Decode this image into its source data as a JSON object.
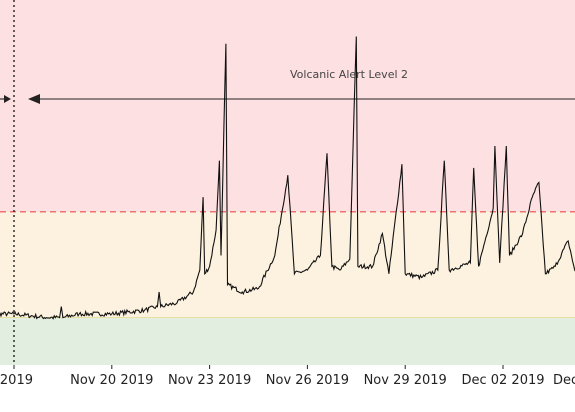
{
  "chart_data": {
    "type": "line",
    "annotation": "Volcanic Alert Level 2",
    "x_tick_labels": [
      "2019",
      "Nov 20 2019",
      "Nov 23 2019",
      "Nov 26 2019",
      "Nov 29 2019",
      "Dec 02 2019",
      "Dec"
    ],
    "x_ticks": [
      "2019-11-17",
      "2019-11-20",
      "2019-11-23",
      "2019-11-26",
      "2019-11-29",
      "2019-12-02",
      "2019-12-05"
    ],
    "xlim": [
      "2019-11-16",
      "2019-12-05"
    ],
    "alert_change_date": "2019-11-17",
    "threshold_line_y": 0.42,
    "bands": [
      {
        "level": "high",
        "from": 0.42,
        "to": 1.0,
        "color": "#fde0e2"
      },
      {
        "level": "moderate",
        "from": 0.13,
        "to": 0.42,
        "color": "#fdf2df"
      },
      {
        "level": "low",
        "from": 0.0,
        "to": 0.13,
        "color": "#e2efe0"
      }
    ],
    "series_color": "#111111",
    "threshold_color": "#f07070",
    "ylim": [
      0,
      1
    ],
    "grid": false,
    "series": [
      {
        "points": [
          [
            "2019-11-16",
            0.14
          ],
          [
            "2019-11-17",
            0.14
          ],
          [
            "2019-11-18",
            0.13
          ],
          [
            "2019-11-18.4",
            0.13
          ],
          [
            "2019-11-18.45",
            0.16
          ],
          [
            "2019-11-18.5",
            0.13
          ],
          [
            "2019-11-19",
            0.14
          ],
          [
            "2019-11-20",
            0.14
          ],
          [
            "2019-11-21",
            0.15
          ],
          [
            "2019-11-21.4",
            0.16
          ],
          [
            "2019-11-21.45",
            0.2
          ],
          [
            "2019-11-21.5",
            0.16
          ],
          [
            "2019-11-22",
            0.17
          ],
          [
            "2019-11-22.5",
            0.2
          ],
          [
            "2019-11-22.7",
            0.26
          ],
          [
            "2019-11-22.8",
            0.46
          ],
          [
            "2019-11-22.85",
            0.25
          ],
          [
            "2019-11-23",
            0.27
          ],
          [
            "2019-11-23.2",
            0.37
          ],
          [
            "2019-11-23.3",
            0.56
          ],
          [
            "2019-11-23.35",
            0.3
          ],
          [
            "2019-11-23.5",
            0.88
          ],
          [
            "2019-11-23.55",
            0.22
          ],
          [
            "2019-11-24",
            0.2
          ],
          [
            "2019-11-24.5",
            0.21
          ],
          [
            "2019-11-25",
            0.3
          ],
          [
            "2019-11-25.4",
            0.52
          ],
          [
            "2019-11-25.6",
            0.25
          ],
          [
            "2019-11-26",
            0.26
          ],
          [
            "2019-11-26.4",
            0.3
          ],
          [
            "2019-11-26.6",
            0.58
          ],
          [
            "2019-11-26.75",
            0.27
          ],
          [
            "2019-11-27",
            0.26
          ],
          [
            "2019-11-27.3",
            0.29
          ],
          [
            "2019-11-27.5",
            0.9
          ],
          [
            "2019-11-27.55",
            0.27
          ],
          [
            "2019-11-28",
            0.27
          ],
          [
            "2019-11-28.3",
            0.36
          ],
          [
            "2019-11-28.5",
            0.25
          ],
          [
            "2019-11-28.9",
            0.55
          ],
          [
            "2019-11-29",
            0.25
          ],
          [
            "2019-11-29.5",
            0.24
          ],
          [
            "2019-11-30",
            0.26
          ],
          [
            "2019-11-30.2",
            0.56
          ],
          [
            "2019-11-30.35",
            0.26
          ],
          [
            "2019-12-01",
            0.28
          ],
          [
            "2019-12-01.1",
            0.54
          ],
          [
            "2019-12-01.25",
            0.27
          ],
          [
            "2019-12-01.7",
            0.43
          ],
          [
            "2019-12-01.75",
            0.6
          ],
          [
            "2019-12-01.9",
            0.28
          ],
          [
            "2019-12-02.1",
            0.6
          ],
          [
            "2019-12-02.2",
            0.3
          ],
          [
            "2019-12-02.6",
            0.36
          ],
          [
            "2019-12-02.9",
            0.46
          ],
          [
            "2019-12-03.1",
            0.5
          ],
          [
            "2019-12-03.3",
            0.25
          ],
          [
            "2019-12-03.6",
            0.27
          ],
          [
            "2019-12-04",
            0.34
          ],
          [
            "2019-12-04.2",
            0.26
          ],
          [
            "2019-12-04.6",
            0.28
          ],
          [
            "2019-12-05",
            0.29
          ]
        ]
      }
    ]
  }
}
